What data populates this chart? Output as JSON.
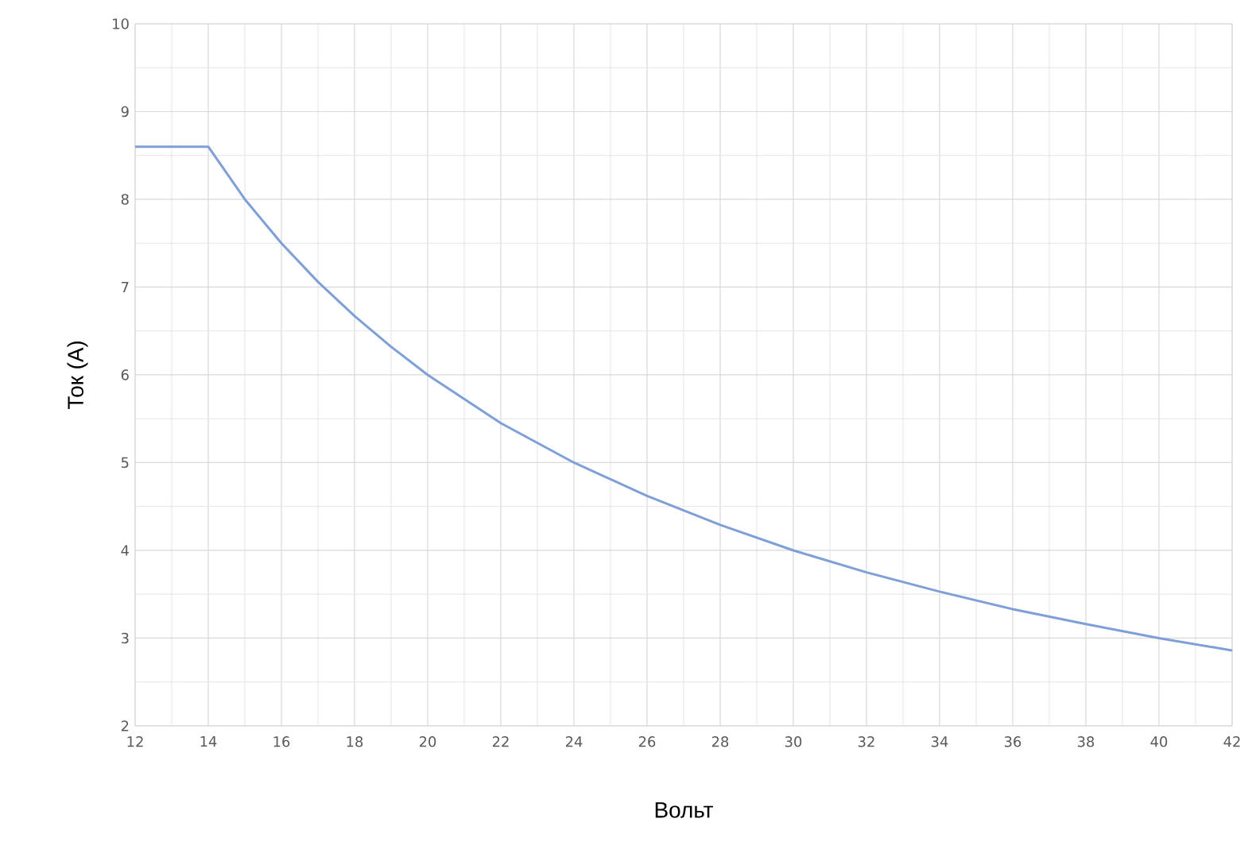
{
  "chart_data": {
    "type": "line",
    "xlabel": "Вольт",
    "ylabel": "Ток (А)",
    "x": [
      12,
      14,
      15,
      16,
      17,
      18,
      19,
      20,
      22,
      24,
      26,
      28,
      30,
      32,
      34,
      36,
      38,
      40,
      42
    ],
    "series": [
      {
        "color": "#7f9fd8",
        "values": [
          8.6,
          8.6,
          8.0,
          7.5,
          7.06,
          6.67,
          6.32,
          6.0,
          5.45,
          5.0,
          4.62,
          4.29,
          4.0,
          3.75,
          3.53,
          3.33,
          3.16,
          3.0,
          2.86
        ]
      }
    ],
    "xlim": [
      12,
      42
    ],
    "xticks": [
      12,
      14,
      16,
      18,
      20,
      22,
      24,
      26,
      28,
      30,
      32,
      34,
      36,
      38,
      40,
      42
    ],
    "ylim": [
      2,
      10
    ],
    "yticks": [
      2,
      3,
      4,
      5,
      6,
      7,
      8,
      9,
      10
    ],
    "grid": true,
    "marker": "none",
    "line_style": "solid"
  }
}
